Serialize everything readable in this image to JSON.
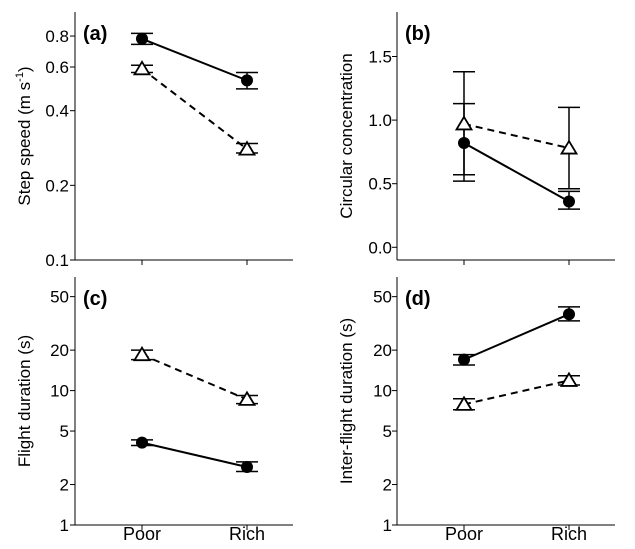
{
  "chart_data": [
    {
      "panel": "(a)",
      "type": "line",
      "ylabel": "Step speed (m s",
      "ylabel_sup": "-1",
      "ylabel_end": ")",
      "yscale": "log",
      "ylim": [
        0.1,
        1.0
      ],
      "yticks": [
        0.1,
        0.2,
        0.4,
        0.6,
        0.8
      ],
      "ytick_labels": [
        "0.1",
        "0.2",
        "0.4",
        "0.6",
        "0.8"
      ],
      "categories": [
        "Poor",
        "Rich"
      ],
      "show_xticklabels": false,
      "series": [
        {
          "marker": "circle",
          "line": "solid",
          "values": [
            0.78,
            0.53
          ],
          "err_low": [
            0.74,
            0.49
          ],
          "err_high": [
            0.82,
            0.57
          ]
        },
        {
          "marker": "triangle",
          "line": "dashed",
          "values": [
            0.59,
            0.28
          ],
          "err_low": [
            0.57,
            0.27
          ],
          "err_high": [
            0.61,
            0.295
          ]
        }
      ]
    },
    {
      "panel": "(b)",
      "type": "line",
      "ylabel": "Circular concentration",
      "yscale": "linear",
      "ylim": [
        -0.1,
        1.85
      ],
      "yticks": [
        0.0,
        0.5,
        1.0,
        1.5
      ],
      "ytick_labels": [
        "0.0",
        "0.5",
        "1.0",
        "1.5"
      ],
      "categories": [
        "Poor",
        "Rich"
      ],
      "show_xticklabels": false,
      "series": [
        {
          "marker": "circle",
          "line": "solid",
          "values": [
            0.82,
            0.36
          ],
          "err_low": [
            0.52,
            0.3
          ],
          "err_high": [
            1.13,
            0.44
          ]
        },
        {
          "marker": "triangle",
          "line": "dashed",
          "values": [
            0.97,
            0.78
          ],
          "err_low": [
            0.57,
            0.46
          ],
          "err_high": [
            1.38,
            1.1
          ]
        }
      ]
    },
    {
      "panel": "(c)",
      "type": "line",
      "ylabel": "Flight duration (s)",
      "yscale": "log",
      "ylim": [
        1,
        70
      ],
      "yticks": [
        1,
        2,
        5,
        10,
        20,
        50
      ],
      "ytick_labels": [
        "1",
        "2",
        "5",
        "10",
        "20",
        "50"
      ],
      "categories": [
        "Poor",
        "Rich"
      ],
      "show_xticklabels": true,
      "series": [
        {
          "marker": "circle",
          "line": "solid",
          "values": [
            4.1,
            2.7
          ],
          "err_low": [
            3.9,
            2.5
          ],
          "err_high": [
            4.3,
            2.95
          ]
        },
        {
          "marker": "triangle",
          "line": "dashed",
          "values": [
            18.5,
            8.6
          ],
          "err_low": [
            17.0,
            8.0
          ],
          "err_high": [
            20.0,
            9.2
          ]
        }
      ]
    },
    {
      "panel": "(d)",
      "type": "line",
      "ylabel": "Inter-flight duration (s)",
      "yscale": "log",
      "ylim": [
        1,
        70
      ],
      "yticks": [
        1,
        2,
        5,
        10,
        20,
        50
      ],
      "ytick_labels": [
        "1",
        "2",
        "5",
        "10",
        "20",
        "50"
      ],
      "categories": [
        "Poor",
        "Rich"
      ],
      "show_xticklabels": true,
      "series": [
        {
          "marker": "circle",
          "line": "solid",
          "values": [
            17.0,
            37.0
          ],
          "err_low": [
            15.5,
            33.0
          ],
          "err_high": [
            18.5,
            42.0
          ]
        },
        {
          "marker": "triangle",
          "line": "dashed",
          "values": [
            7.9,
            11.9
          ],
          "err_low": [
            7.2,
            11.0
          ],
          "err_high": [
            8.7,
            12.9
          ]
        }
      ]
    }
  ]
}
